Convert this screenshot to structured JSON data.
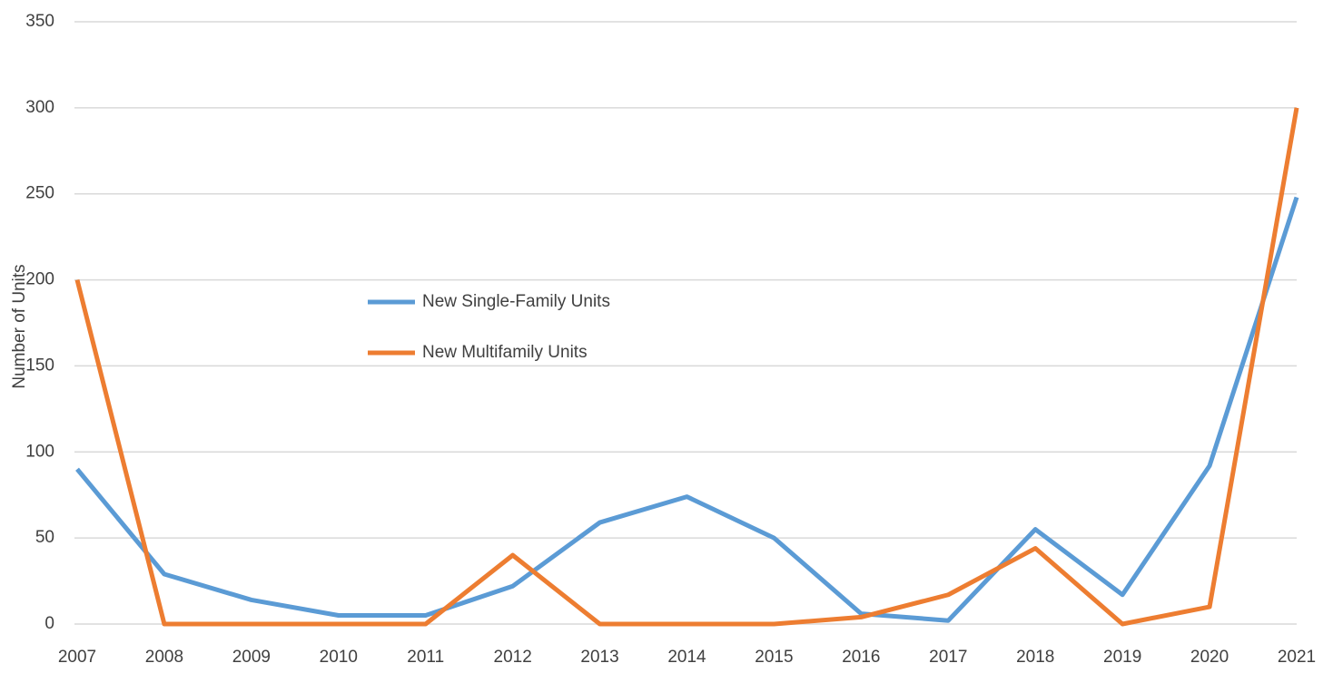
{
  "chart_data": {
    "type": "line",
    "y_label": "Number  of Units",
    "categories": [
      "2007",
      "2008",
      "2009",
      "2010",
      "2011",
      "2012",
      "2013",
      "2014",
      "2015",
      "2016",
      "2017",
      "2018",
      "2019",
      "2020",
      "2021"
    ],
    "series": [
      {
        "name": "New Single-Family Units",
        "color": "#5b9bd5",
        "values": [
          90,
          29,
          14,
          5,
          5,
          22,
          59,
          74,
          50,
          6,
          2,
          55,
          17,
          92,
          248
        ]
      },
      {
        "name": "New Multifamily Units",
        "color": "#ed7d31",
        "values": [
          200,
          0,
          0,
          0,
          0,
          40,
          0,
          0,
          0,
          4,
          17,
          44,
          0,
          10,
          300
        ]
      }
    ],
    "ylim": [
      0,
      350
    ],
    "yticks": [
      0,
      50,
      100,
      150,
      200,
      250,
      300,
      350
    ],
    "grid": true,
    "legend": "center"
  }
}
